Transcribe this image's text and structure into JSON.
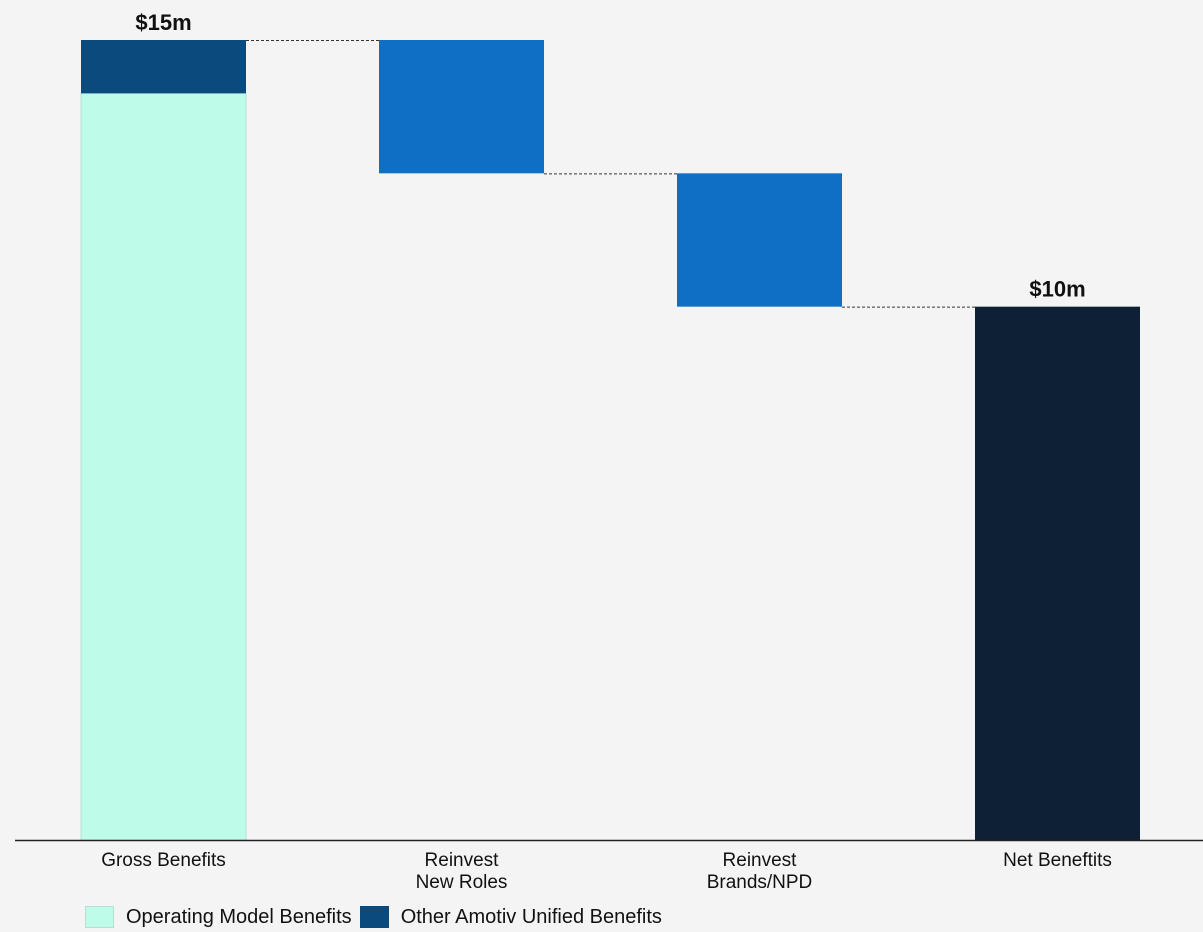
{
  "chart_data": {
    "type": "waterfall",
    "ylim": [
      0,
      15
    ],
    "grid": false,
    "legend_placement": "bottom-left",
    "categories": [
      {
        "label_lines": [
          "Gross Benefits"
        ]
      },
      {
        "label_lines": [
          "Reinvest",
          "New Roles"
        ]
      },
      {
        "label_lines": [
          "Reinvest",
          "Brands/NPD"
        ]
      },
      {
        "label_lines": [
          "Net Beneftits"
        ]
      }
    ],
    "bars": [
      {
        "kind": "stacked-total",
        "segments": [
          {
            "series": "Operating Model Benefits",
            "value": 14
          },
          {
            "series": "Other Amotiv Unified Benefits",
            "value": 1
          }
        ],
        "label": "$15m"
      },
      {
        "kind": "decrease",
        "start": 15,
        "end": 12.5,
        "label": ""
      },
      {
        "kind": "decrease",
        "start": 12.5,
        "end": 10,
        "label": ""
      },
      {
        "kind": "total",
        "value": 10,
        "label": "$10m"
      }
    ],
    "series": [
      {
        "name": "Operating Model Benefits",
        "color": "#bffbe9"
      },
      {
        "name": "Other Amotiv Unified Benefits",
        "color": "#0a4a7d"
      }
    ],
    "colors": {
      "decrease": "#0f6fc5",
      "total": "#0e2036",
      "baseline": "#222222",
      "connector": "#333333"
    }
  }
}
